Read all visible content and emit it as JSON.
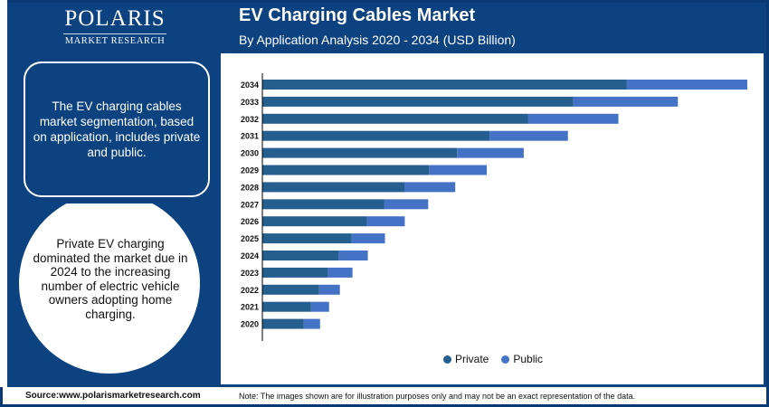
{
  "brand": {
    "name": "POLARIS",
    "sub": "MARKET RESEARCH"
  },
  "header": {
    "title": "EV Charging Cables Market",
    "subtitle": "By Application Analysis 2020 - 2034 (USD Billion)"
  },
  "side": {
    "box_text": "The EV charging cables market segmentation, based on application, includes private and public.",
    "circle_text": "Private EV charging dominated the market due in 2024 to the increasing number of electric vehicle owners adopting home charging."
  },
  "footer": {
    "source": "Source:www.polarismarketresearch.com",
    "note": "Note: The images shown are for illustration purposes only and may not be an exact representation of the data."
  },
  "colors": {
    "private": "#245f8f",
    "public": "#4472c4",
    "navy": "#0d4280"
  },
  "chart_data": {
    "type": "bar",
    "orientation": "horizontal",
    "stacked": true,
    "title": "EV Charging Cables Market",
    "subtitle": "By Application Analysis 2020 - 2034 (USD Billion)",
    "xlabel": "",
    "ylabel": "",
    "grid": false,
    "legend_position": "bottom",
    "categories": [
      "2034",
      "2033",
      "2032",
      "2031",
      "2030",
      "2029",
      "2028",
      "2027",
      "2026",
      "2025",
      "2024",
      "2023",
      "2022",
      "2021",
      "2020"
    ],
    "series": [
      {
        "name": "Private",
        "values": [
          40.4,
          34.5,
          29.5,
          25.2,
          21.6,
          18.5,
          15.8,
          13.5,
          11.6,
          9.9,
          8.5,
          7.3,
          6.3,
          5.4,
          4.6
        ]
      },
      {
        "name": "Public",
        "values": [
          13.4,
          11.6,
          10.0,
          8.7,
          7.4,
          6.4,
          5.6,
          4.9,
          4.2,
          3.7,
          3.2,
          2.7,
          2.3,
          2.0,
          1.8
        ]
      }
    ],
    "xlim": [
      0,
      54
    ]
  }
}
